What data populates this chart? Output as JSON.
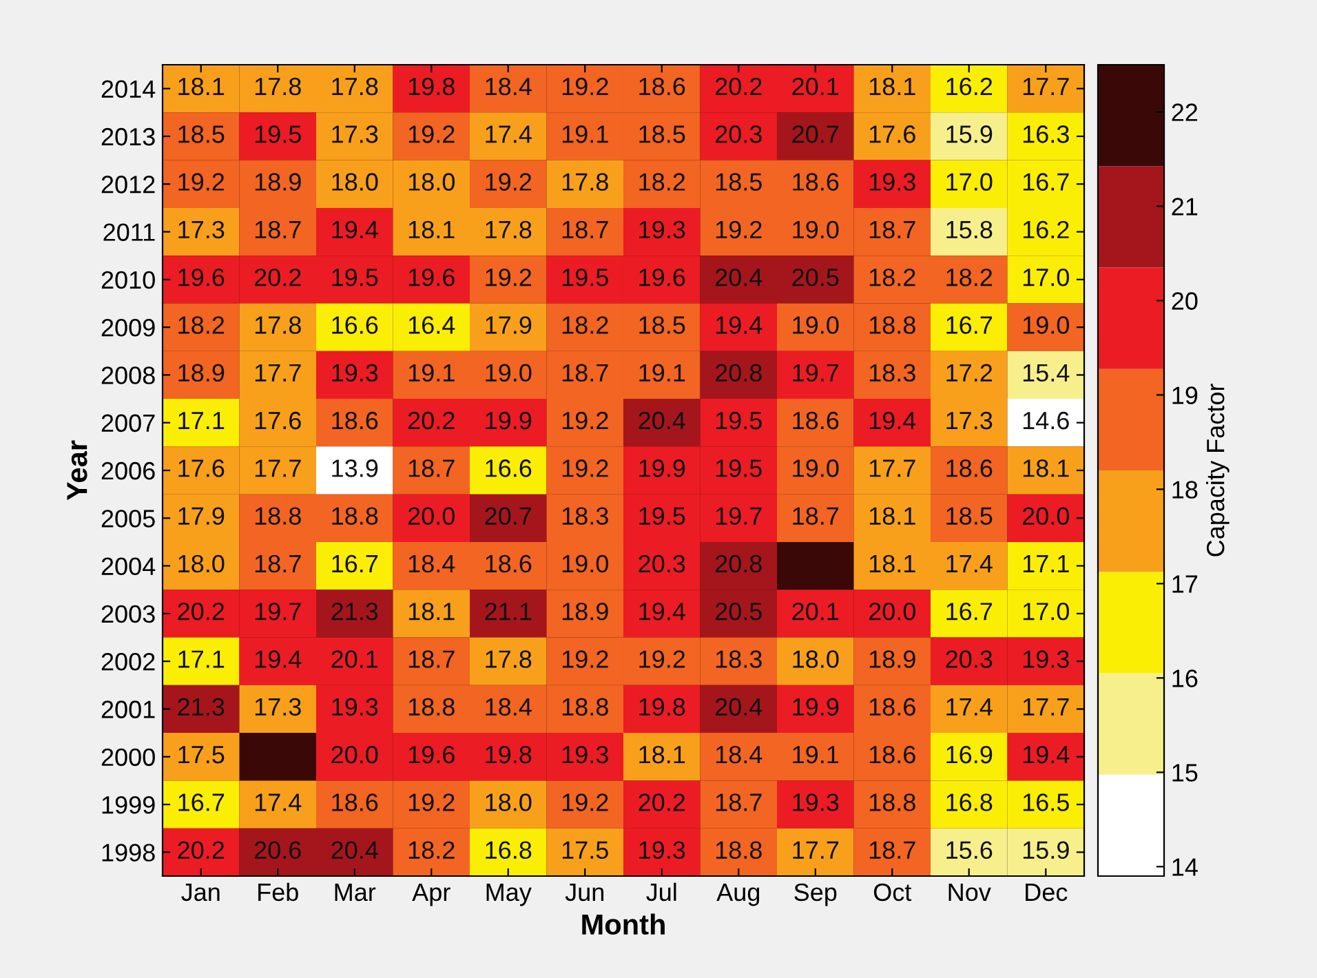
{
  "chart_data": {
    "type": "heatmap",
    "xlabel": "Month",
    "ylabel": "Year",
    "clabel": "Capacity Factor",
    "categories": [
      "Jan",
      "Feb",
      "Mar",
      "Apr",
      "May",
      "Jun",
      "Jul",
      "Aug",
      "Sep",
      "Oct",
      "Nov",
      "Dec"
    ],
    "y_categories": [
      "2014",
      "2013",
      "2012",
      "2011",
      "2010",
      "2009",
      "2008",
      "2007",
      "2006",
      "2005",
      "2004",
      "2003",
      "2002",
      "2001",
      "2000",
      "1999",
      "1998"
    ],
    "cells": [
      [
        18.1,
        17.8,
        17.8,
        19.8,
        18.4,
        19.2,
        18.6,
        20.2,
        20.1,
        18.1,
        16.2,
        17.7
      ],
      [
        18.5,
        19.5,
        17.3,
        19.2,
        17.4,
        19.1,
        18.5,
        20.3,
        20.7,
        17.6,
        15.9,
        16.3
      ],
      [
        19.2,
        18.9,
        18.0,
        18.0,
        19.2,
        17.8,
        18.2,
        18.5,
        18.6,
        19.3,
        17.0,
        16.7
      ],
      [
        17.3,
        18.7,
        19.4,
        18.1,
        17.8,
        18.7,
        19.3,
        19.2,
        19.0,
        18.7,
        15.8,
        16.2
      ],
      [
        19.6,
        20.2,
        19.5,
        19.6,
        19.2,
        19.5,
        19.6,
        20.4,
        20.5,
        18.2,
        18.2,
        17.0
      ],
      [
        18.2,
        17.8,
        16.6,
        16.4,
        17.9,
        18.2,
        18.5,
        19.4,
        19.0,
        18.8,
        16.7,
        19.0
      ],
      [
        18.9,
        17.7,
        19.3,
        19.1,
        19.0,
        18.7,
        19.1,
        20.8,
        19.7,
        18.3,
        17.2,
        15.4
      ],
      [
        17.1,
        17.6,
        18.6,
        20.2,
        19.9,
        19.2,
        20.4,
        19.5,
        18.6,
        19.4,
        17.3,
        14.6
      ],
      [
        17.6,
        17.7,
        13.9,
        18.7,
        16.6,
        19.2,
        19.9,
        19.5,
        19.0,
        17.7,
        18.6,
        18.1
      ],
      [
        17.9,
        18.8,
        18.8,
        20.0,
        20.7,
        18.3,
        19.5,
        19.7,
        18.7,
        18.1,
        18.5,
        20.0
      ],
      [
        18.0,
        18.7,
        16.7,
        18.4,
        18.6,
        19.0,
        20.3,
        20.8,
        null,
        18.1,
        17.4,
        17.1
      ],
      [
        20.2,
        19.7,
        21.3,
        18.1,
        21.1,
        18.9,
        19.4,
        20.5,
        20.1,
        20.0,
        16.7,
        17.0
      ],
      [
        17.1,
        19.4,
        20.1,
        18.7,
        17.8,
        19.2,
        19.2,
        18.3,
        18.0,
        18.9,
        20.3,
        19.3
      ],
      [
        21.3,
        17.3,
        19.3,
        18.8,
        18.4,
        18.8,
        19.8,
        20.4,
        19.9,
        18.6,
        17.4,
        17.7
      ],
      [
        17.5,
        null,
        20.0,
        19.6,
        19.8,
        19.3,
        18.1,
        18.4,
        19.1,
        18.6,
        16.9,
        19.4
      ],
      [
        16.7,
        17.4,
        18.6,
        19.2,
        18.0,
        19.2,
        20.2,
        18.7,
        19.3,
        18.8,
        16.8,
        16.5
      ],
      [
        20.2,
        20.6,
        20.4,
        18.2,
        16.8,
        17.5,
        19.3,
        18.8,
        17.7,
        18.7,
        15.6,
        15.9
      ]
    ],
    "cell_labels": [
      [
        "18.1",
        "17.8",
        "17.8",
        "19.8",
        "18.4",
        "19.2",
        "18.6",
        "20.2",
        "20.1",
        "18.1",
        "16.2",
        "17.7"
      ],
      [
        "18.5",
        "19.5",
        "17.3",
        "19.2",
        "17.4",
        "19.1",
        "18.5",
        "20.3",
        "20.7",
        "17.6",
        "15.9",
        "16.3"
      ],
      [
        "19.2",
        "18.9",
        "18.0",
        "18.0",
        "19.2",
        "17.8",
        "18.2",
        "18.5",
        "18.6",
        "19.3",
        "17.0",
        "16.7"
      ],
      [
        "17.3",
        "18.7",
        "19.4",
        "18.1",
        "17.8",
        "18.7",
        "19.3",
        "19.2",
        "19.0",
        "18.7",
        "15.8",
        "16.2"
      ],
      [
        "19.6",
        "20.2",
        "19.5",
        "19.6",
        "19.2",
        "19.5",
        "19.6",
        "20.4",
        "20.5",
        "18.2",
        "18.2",
        "17.0"
      ],
      [
        "18.2",
        "17.8",
        "16.6",
        "16.4",
        "17.9",
        "18.2",
        "18.5",
        "19.4",
        "19.0",
        "18.8",
        "16.7",
        "19.0"
      ],
      [
        "18.9",
        "17.7",
        "19.3",
        "19.1",
        "19.0",
        "18.7",
        "19.1",
        "20.8",
        "19.7",
        "18.3",
        "17.2",
        "15.4"
      ],
      [
        "17.1",
        "17.6",
        "18.6",
        "20.2",
        "19.9",
        "19.2",
        "20.4",
        "19.5",
        "18.6",
        "19.4",
        "17.3",
        "14.6"
      ],
      [
        "17.6",
        "17.7",
        "13.9",
        "18.7",
        "16.6",
        "19.2",
        "19.9",
        "19.5",
        "19.0",
        "17.7",
        "18.6",
        "18.1"
      ],
      [
        "17.9",
        "18.8",
        "18.8",
        "20.0",
        "20.7",
        "18.3",
        "19.5",
        "19.7",
        "18.7",
        "18.1",
        "18.5",
        "20.0"
      ],
      [
        "18.0",
        "18.7",
        "16.7",
        "18.4",
        "18.6",
        "19.0",
        "20.3",
        "20.8",
        null,
        "18.1",
        "17.4",
        "17.1"
      ],
      [
        "20.2",
        "19.7",
        "21.3",
        "18.1",
        "21.1",
        "18.9",
        "19.4",
        "20.5",
        "20.1",
        "20.0",
        "16.7",
        "17.0"
      ],
      [
        "17.1",
        "19.4",
        "20.1",
        "18.7",
        "17.8",
        "19.2",
        "19.2",
        "18.3",
        "18.0",
        "18.9",
        "20.3",
        "19.3"
      ],
      [
        "21.3",
        "17.3",
        "19.3",
        "18.8",
        "18.4",
        "18.8",
        "19.8",
        "20.4",
        "19.9",
        "18.6",
        "17.4",
        "17.7"
      ],
      [
        "17.5",
        null,
        "20.0",
        "19.6",
        "19.8",
        "19.3",
        "18.1",
        "18.4",
        "19.1",
        "18.6",
        "16.9",
        "19.4"
      ],
      [
        "16.7",
        "17.4",
        "18.6",
        "19.2",
        "18.0",
        "19.2",
        "20.2",
        "18.7",
        "19.3",
        "18.8",
        "16.8",
        "16.5"
      ],
      [
        "20.2",
        "20.6",
        "20.4",
        "18.2",
        "16.8",
        "17.5",
        "19.3",
        "18.8",
        "17.7",
        "18.7",
        "15.6",
        "15.9"
      ]
    ],
    "colors": [
      "#ffffff",
      "#f6ef8c",
      "#fbee05",
      "#f8a01c",
      "#f26522",
      "#ec1c24",
      "#a5161c",
      "#3b0808"
    ],
    "clim": [
      13.9,
      22.5
    ],
    "cticks": [
      14,
      15,
      16,
      17,
      18,
      19,
      20,
      21,
      22
    ],
    "grid": false
  }
}
